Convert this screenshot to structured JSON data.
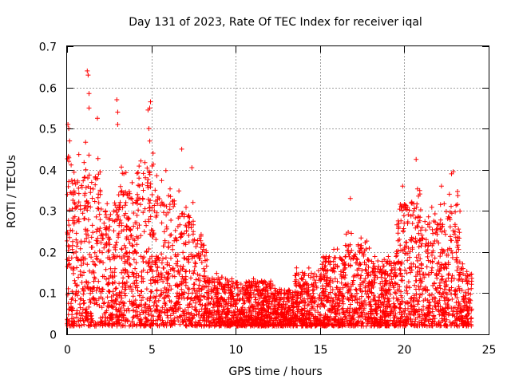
{
  "chart_data": {
    "type": "scatter",
    "title": "Day 131 of 2023, Rate Of TEC Index for receiver iqal",
    "xlabel": "GPS time / hours",
    "ylabel": "ROTI / TECUs",
    "xlim": [
      0,
      25
    ],
    "ylim": [
      0,
      0.7
    ],
    "xticks": [
      0,
      5,
      10,
      15,
      20,
      25
    ],
    "yticks": [
      0,
      0.1,
      0.2,
      0.3,
      0.4,
      0.5,
      0.6,
      0.7
    ],
    "xtick_labels": [
      "0",
      "5",
      "10",
      "15",
      "20",
      "25"
    ],
    "ytick_labels": [
      "0",
      "0.1",
      "0.2",
      "0.3",
      "0.4",
      "0.5",
      "0.6",
      "0.7"
    ],
    "grid": true,
    "marker": "+",
    "marker_color": "#ff0000",
    "data_x_range": [
      0,
      24
    ],
    "series": [
      {
        "name": "ROTI",
        "description_points": [
          {
            "x": 0.05,
            "y": 0.51
          },
          {
            "x": 0.1,
            "y": 0.5
          },
          {
            "x": 0.15,
            "y": 0.47
          },
          {
            "x": 1.2,
            "y": 0.64
          },
          {
            "x": 1.25,
            "y": 0.63
          },
          {
            "x": 1.3,
            "y": 0.585
          },
          {
            "x": 1.3,
            "y": 0.55
          },
          {
            "x": 1.8,
            "y": 0.525
          },
          {
            "x": 2.95,
            "y": 0.57
          },
          {
            "x": 3.0,
            "y": 0.54
          },
          {
            "x": 3.0,
            "y": 0.51
          },
          {
            "x": 4.95,
            "y": 0.565
          },
          {
            "x": 4.9,
            "y": 0.55
          },
          {
            "x": 4.8,
            "y": 0.545
          },
          {
            "x": 4.85,
            "y": 0.5
          },
          {
            "x": 6.8,
            "y": 0.45
          },
          {
            "x": 7.4,
            "y": 0.405
          },
          {
            "x": 20.7,
            "y": 0.425
          },
          {
            "x": 22.8,
            "y": 0.39
          },
          {
            "x": 22.9,
            "y": 0.395
          },
          {
            "x": 16.8,
            "y": 0.33
          },
          {
            "x": 19.9,
            "y": 0.36
          },
          {
            "x": 22.2,
            "y": 0.36
          }
        ]
      }
    ]
  }
}
